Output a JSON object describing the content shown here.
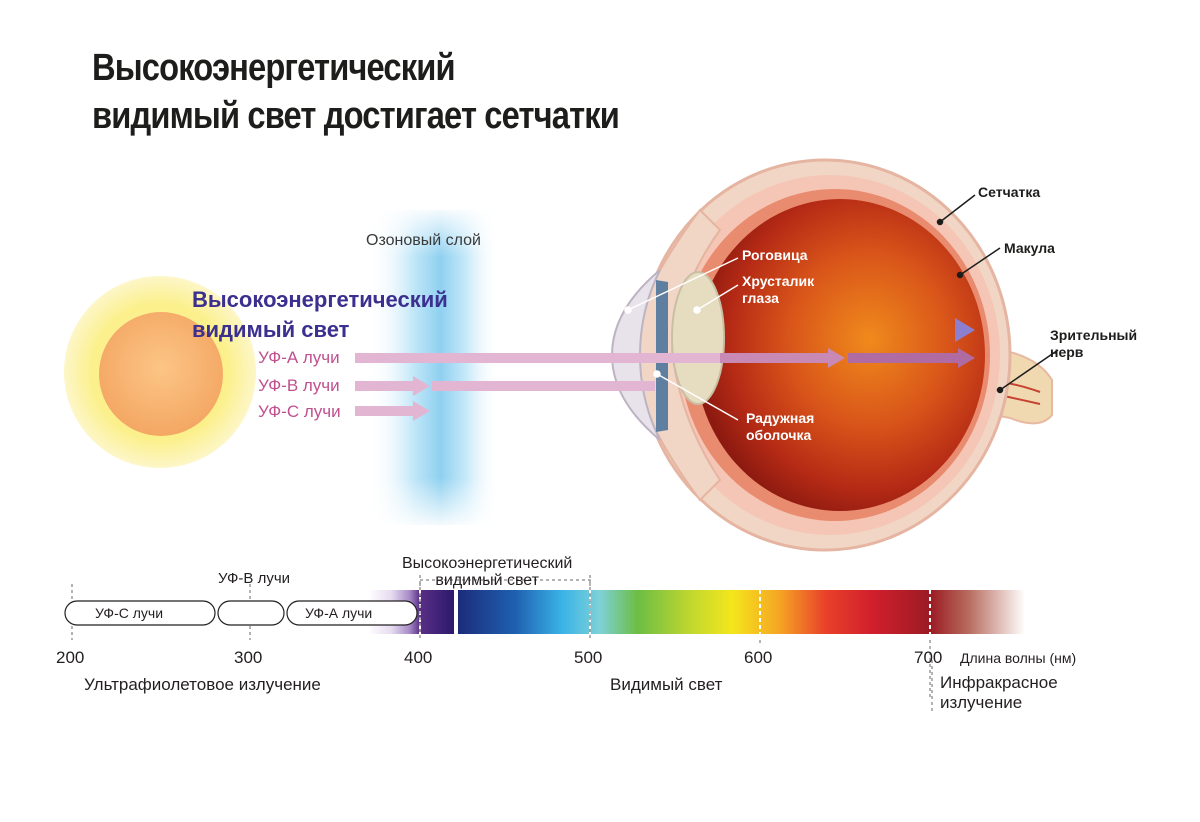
{
  "title": {
    "line1": "Высокоэнергетический",
    "line2": "видимый свет достигает сетчатки"
  },
  "ozone_label": "Озоновый слой",
  "rays": {
    "hev_line1": "Высокоэнергетический",
    "hev_line2": "видимый свет",
    "uva": "УФ-А лучи",
    "uvb": "УФ-В лучи",
    "uvc": "УФ-С лучи"
  },
  "eye_labels": {
    "cornea": "Роговица",
    "lens_line1": "Хрусталик",
    "lens_line2": "глаза",
    "iris_line1": "Радужная",
    "iris_line2": "оболочка",
    "retina": "Сетчатка",
    "macula": "Макула",
    "nerve_line1": "Зрительный",
    "nerve_line2": "нерв"
  },
  "spectrum": {
    "uvb_top_label": "УФ-В лучи",
    "hev_top_line1": "Высокоэнергетический",
    "hev_top_line2": "видимый свет",
    "pill_uvc": "УФ-С лучи",
    "pill_uva": "УФ-А лучи",
    "ticks": [
      "200",
      "300",
      "400",
      "500",
      "600",
      "700"
    ],
    "unit_label": "Длина волны (нм)",
    "uv_label": "Ультрафиолетовое излучение",
    "visible_label": "Видимый свет",
    "ir_line1": "Инфракрасное",
    "ir_line2": "излучение"
  },
  "colors": {
    "hev_arrow": "#5a4fa8",
    "uv_arrow": "#e2b6d3",
    "ozone": "#8fd0f0",
    "sun_outer": "#fbf18c",
    "sun_inner": "#f6b070"
  }
}
